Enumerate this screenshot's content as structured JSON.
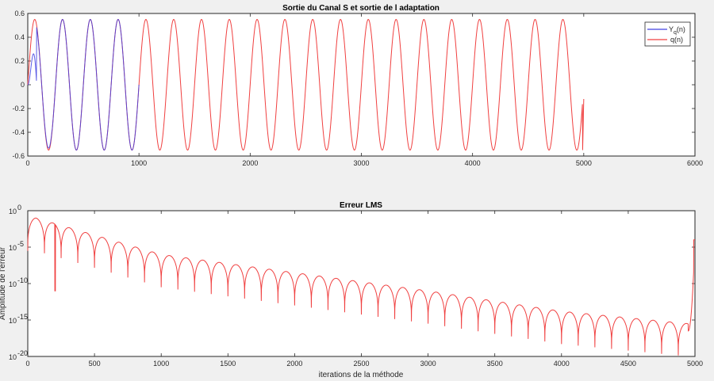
{
  "chart_data": [
    {
      "type": "line",
      "title": "Sortie du Canal S et sortie de l adaptation",
      "xlabel": "",
      "ylabel": "",
      "xlim": [
        0,
        6000
      ],
      "ylim": [
        -0.6,
        0.6
      ],
      "xticks": [
        0,
        1000,
        2000,
        3000,
        4000,
        5000,
        6000
      ],
      "yticks": [
        0.6,
        0.4,
        0.2,
        0,
        -0.2,
        -0.4,
        -0.6
      ],
      "grid": false,
      "legend_position": "top-right",
      "signal": {
        "description_points": "sinusoid, period about 250 samples, amplitude about 0.55, defined for n = 0..5000",
        "period": 250,
        "amplitude": 0.55,
        "n_max": 5000,
        "final_value": -0.12
      },
      "series": [
        {
          "name": "Y_q(n)",
          "name_main": "Y",
          "name_sub": "q",
          "name_tail": "(n)",
          "color": "#4040e0",
          "x": [
            0,
            40,
            62,
            100,
            150,
            200,
            250,
            300,
            330,
            350
          ],
          "y": [
            0,
            0.1,
            0.3,
            0.42,
            -0.15,
            -0.52,
            -0.3,
            0.35,
            0.54,
            0.5
          ]
        },
        {
          "name": "q(n)",
          "color": "#f04040",
          "x": [
            0,
            60,
            125,
            190,
            250,
            5000
          ],
          "y": [
            0,
            0.54,
            0,
            -0.54,
            0,
            -0.12
          ]
        }
      ]
    },
    {
      "type": "line",
      "title": "Erreur LMS",
      "xlabel": "iterations de la méthode",
      "ylabel": "Amplitude de l'erreur",
      "xlim": [
        0,
        5000
      ],
      "ylim_exponent": [
        -20,
        0
      ],
      "yscale": "log",
      "xticks": [
        0,
        500,
        1000,
        1500,
        2000,
        2500,
        3000,
        3500,
        4000,
        4500,
        5000
      ],
      "ytick_exponents": [
        0,
        -5,
        -10,
        -15,
        -20
      ],
      "ytick_base": "10",
      "grid": false,
      "series": [
        {
          "name": "",
          "color": "#f04040",
          "envelope_peak_exponent": [
            [
              0,
              -1
            ],
            [
              60,
              -1
            ],
            [
              1000,
              -6
            ],
            [
              2000,
              -8.5
            ],
            [
              3000,
              -11
            ],
            [
              4000,
              -13.8
            ],
            [
              4950,
              -15.5
            ],
            [
              5000,
              -4
            ]
          ],
          "dip_spacing": 125,
          "dip_depth": 4.5,
          "notable_dip": {
            "x": 205,
            "exponent": -11
          }
        }
      ]
    }
  ]
}
